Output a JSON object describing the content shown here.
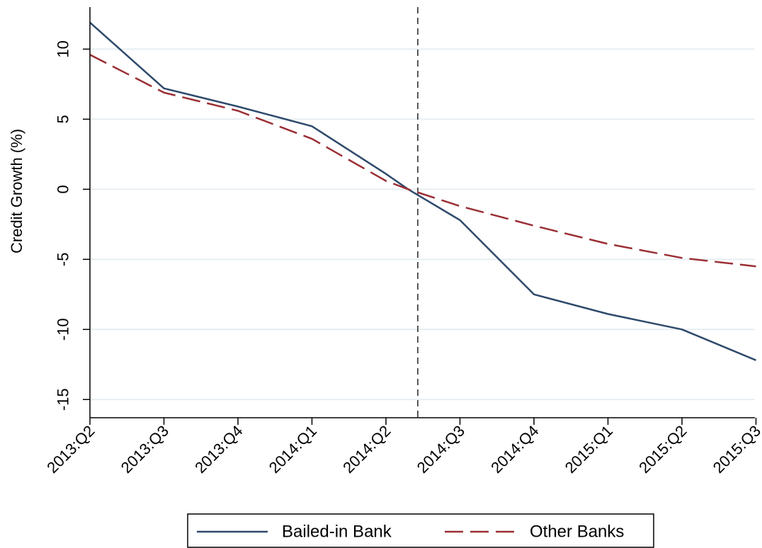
{
  "chart_data": {
    "type": "line",
    "title": "",
    "xlabel": "",
    "ylabel": "Credit Growth (%)",
    "categories": [
      "2013:Q2",
      "2013:Q3",
      "2013:Q4",
      "2014:Q1",
      "2014:Q2",
      "2014:Q3",
      "2014:Q4",
      "2015:Q1",
      "2015:Q2",
      "2015:Q3"
    ],
    "ylim": [
      -16.3,
      13
    ],
    "yticks": [
      10,
      5,
      0,
      -5,
      -10,
      -15
    ],
    "grid": true,
    "vertical_marker": {
      "x_between": [
        "2014:Q2",
        "2014:Q3"
      ],
      "style": "dashed"
    },
    "legend_position": "bottom",
    "series": [
      {
        "name": "Bailed-in Bank",
        "style": "solid",
        "color": "#2e4a6b",
        "points": [
          {
            "x": 0,
            "y": 11.9
          },
          {
            "x": 1,
            "y": 7.2
          },
          {
            "x": 2,
            "y": 5.9
          },
          {
            "x": 3,
            "y": 4.5
          },
          {
            "x": 4,
            "y": 1.1
          },
          {
            "x": 4.3,
            "y": 0.0
          },
          {
            "x": 5,
            "y": -2.2
          },
          {
            "x": 6,
            "y": -7.5
          },
          {
            "x": 7,
            "y": -8.9
          },
          {
            "x": 8,
            "y": -10.0
          },
          {
            "x": 9,
            "y": -12.2
          }
        ]
      },
      {
        "name": "Other Banks",
        "style": "dashed",
        "color": "#9b2f35",
        "points": [
          {
            "x": 0,
            "y": 9.6
          },
          {
            "x": 1,
            "y": 6.9
          },
          {
            "x": 2,
            "y": 5.6
          },
          {
            "x": 3,
            "y": 3.6
          },
          {
            "x": 4,
            "y": 0.6
          },
          {
            "x": 4.3,
            "y": 0.0
          },
          {
            "x": 5,
            "y": -1.2
          },
          {
            "x": 6,
            "y": -2.6
          },
          {
            "x": 7,
            "y": -3.9
          },
          {
            "x": 8,
            "y": -4.9
          },
          {
            "x": 9,
            "y": -5.5
          }
        ]
      }
    ]
  }
}
